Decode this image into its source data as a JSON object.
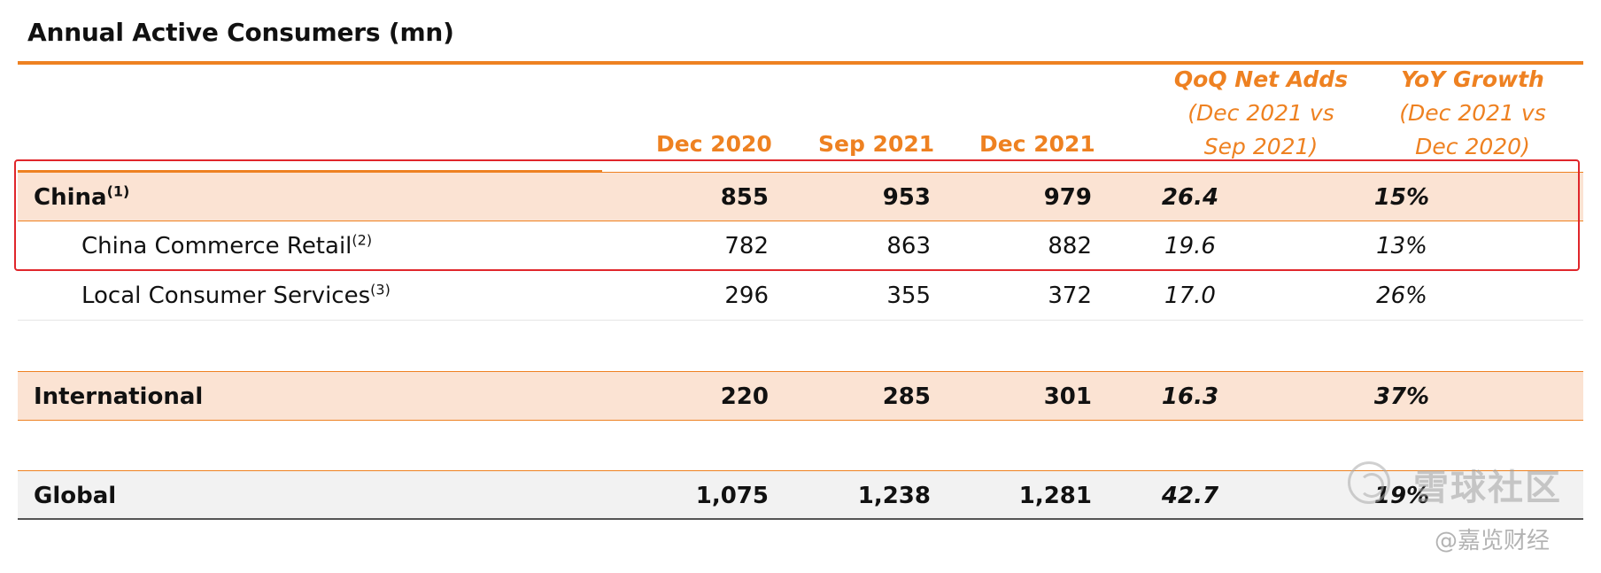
{
  "title": "Annual Active Consumers (mn)",
  "columns": {
    "c1": "Dec 2020",
    "c2": "Sep 2021",
    "c3": "Dec 2021",
    "qoq": {
      "main": "QoQ Net Adds",
      "sub1": "(Dec 2021 vs",
      "sub2": "Sep 2021)"
    },
    "yoy": {
      "main": "YoY Growth",
      "sub1": "(Dec 2021 vs",
      "sub2": "Dec 2020)"
    }
  },
  "rows": [
    {
      "label": "China",
      "note": "(1)",
      "dec2020": "855",
      "sep2021": "953",
      "dec2021": "979",
      "qoq": "26.4",
      "yoy": "15%"
    },
    {
      "label": "China Commerce Retail",
      "note": "(2)",
      "dec2020": "782",
      "sep2021": "863",
      "dec2021": "882",
      "qoq": "19.6",
      "yoy": "13%"
    },
    {
      "label": "Local Consumer Services",
      "note": "(3)",
      "dec2020": "296",
      "sep2021": "355",
      "dec2021": "372",
      "qoq": "17.0",
      "yoy": "26%"
    },
    {
      "label": "International",
      "note": "",
      "dec2020": "220",
      "sep2021": "285",
      "dec2021": "301",
      "qoq": "16.3",
      "yoy": "37%"
    },
    {
      "label": "Global",
      "note": "",
      "dec2020": "1,075",
      "sep2021": "1,238",
      "dec2021": "1,281",
      "qoq": "42.7",
      "yoy": "19%"
    }
  ],
  "watermark": {
    "logo_icon": "xueqiu-logo-icon",
    "brand": "雪球社区",
    "handle": "@嘉览财经"
  },
  "colors": {
    "accent": "#ee8121",
    "shade": "#fbe3d3",
    "highlight": "#e0262b"
  }
}
